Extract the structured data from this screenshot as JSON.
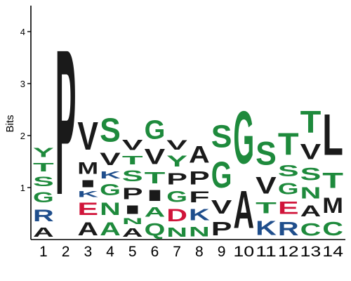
{
  "chart_data": {
    "type": "sequence-logo",
    "ylabel": "Bits",
    "ylim": [
      0,
      4.5
    ],
    "yticks": [
      1,
      2,
      3,
      4
    ],
    "positions": [
      "1",
      "2",
      "3",
      "4",
      "5",
      "6",
      "7",
      "8",
      "9",
      "10",
      "11",
      "12",
      "13",
      "14"
    ],
    "colors": {
      "hydrophobic": "#1a1a1a",
      "polar": "#1e8a3c",
      "basic": "#1f4e8c",
      "acidic": "#d0143a"
    },
    "columns": [
      [
        [
          "A",
          0.28,
          "hydrophobic"
        ],
        [
          "R",
          0.37,
          "basic"
        ],
        [
          "G",
          0.32,
          "polar"
        ],
        [
          "S",
          0.29,
          "polar"
        ],
        [
          "T",
          0.27,
          "polar"
        ],
        [
          "Y",
          0.28,
          "polar"
        ]
      ],
      [
        [
          "P",
          4.47,
          "hydrophobic"
        ]
      ],
      [
        [
          "A",
          0.4,
          "hydrophobic"
        ],
        [
          "E",
          0.38,
          "acidic"
        ],
        [
          "K",
          0.18,
          "basic"
        ],
        [
          "I",
          0.23,
          "hydrophobic"
        ],
        [
          "M",
          0.37,
          "hydrophobic"
        ],
        [
          "V",
          0.85,
          "hydrophobic"
        ]
      ],
      [
        [
          "A",
          0.4,
          "polar"
        ],
        [
          "N",
          0.38,
          "polar"
        ],
        [
          "G",
          0.35,
          "polar"
        ],
        [
          "K",
          0.23,
          "basic"
        ],
        [
          "V",
          0.38,
          "hydrophobic"
        ],
        [
          "S",
          0.73,
          "polar"
        ]
      ],
      [
        [
          "A",
          0.26,
          "hydrophobic"
        ],
        [
          "N",
          0.18,
          "polar"
        ],
        [
          "I",
          0.27,
          "hydrophobic"
        ],
        [
          "P",
          0.35,
          "hydrophobic"
        ],
        [
          "S",
          0.33,
          "polar"
        ],
        [
          "T",
          0.27,
          "polar"
        ],
        [
          "V",
          0.32,
          "hydrophobic"
        ]
      ],
      [
        [
          "Q",
          0.38,
          "polar"
        ],
        [
          "A",
          0.3,
          "polar"
        ],
        [
          "I",
          0.33,
          "hydrophobic"
        ],
        [
          "T",
          0.35,
          "polar"
        ],
        [
          "V",
          0.47,
          "hydrophobic"
        ],
        [
          "G",
          0.57,
          "polar"
        ]
      ],
      [
        [
          "N",
          0.28,
          "polar"
        ],
        [
          "D",
          0.38,
          "acidic"
        ],
        [
          "G",
          0.33,
          "polar"
        ],
        [
          "P",
          0.35,
          "hydrophobic"
        ],
        [
          "Y",
          0.33,
          "polar"
        ],
        [
          "V",
          0.3,
          "hydrophobic"
        ]
      ],
      [
        [
          "N",
          0.3,
          "polar"
        ],
        [
          "K",
          0.35,
          "basic"
        ],
        [
          "F",
          0.33,
          "hydrophobic"
        ],
        [
          "P",
          0.4,
          "hydrophobic"
        ],
        [
          "A",
          0.52,
          "hydrophobic"
        ]
      ],
      [
        [
          "P",
          0.42,
          "hydrophobic"
        ],
        [
          "V",
          0.42,
          "hydrophobic"
        ],
        [
          "G",
          0.8,
          "polar"
        ],
        [
          "S",
          0.69,
          "polar"
        ]
      ],
      [
        [
          "A",
          1.15,
          "hydrophobic"
        ],
        [
          "G",
          1.62,
          "polar"
        ]
      ],
      [
        [
          "K",
          0.44,
          "basic"
        ],
        [
          "T",
          0.34,
          "polar"
        ],
        [
          "V",
          0.52,
          "hydrophobic"
        ],
        [
          "S",
          0.72,
          "polar"
        ]
      ],
      [
        [
          "R",
          0.42,
          "basic"
        ],
        [
          "E",
          0.38,
          "acidic"
        ],
        [
          "G",
          0.35,
          "polar"
        ],
        [
          "S",
          0.35,
          "polar"
        ],
        [
          "T",
          0.68,
          "polar"
        ]
      ],
      [
        [
          "C",
          0.38,
          "polar"
        ],
        [
          "A",
          0.34,
          "hydrophobic"
        ],
        [
          "N",
          0.35,
          "polar"
        ],
        [
          "S",
          0.38,
          "polar"
        ],
        [
          "V",
          0.48,
          "hydrophobic"
        ],
        [
          "T",
          0.68,
          "polar"
        ]
      ],
      [
        [
          "C",
          0.42,
          "polar"
        ],
        [
          "M",
          0.48,
          "hydrophobic"
        ],
        [
          "T",
          0.48,
          "polar"
        ],
        [
          "L",
          1.27,
          "hydrophobic"
        ]
      ]
    ]
  }
}
